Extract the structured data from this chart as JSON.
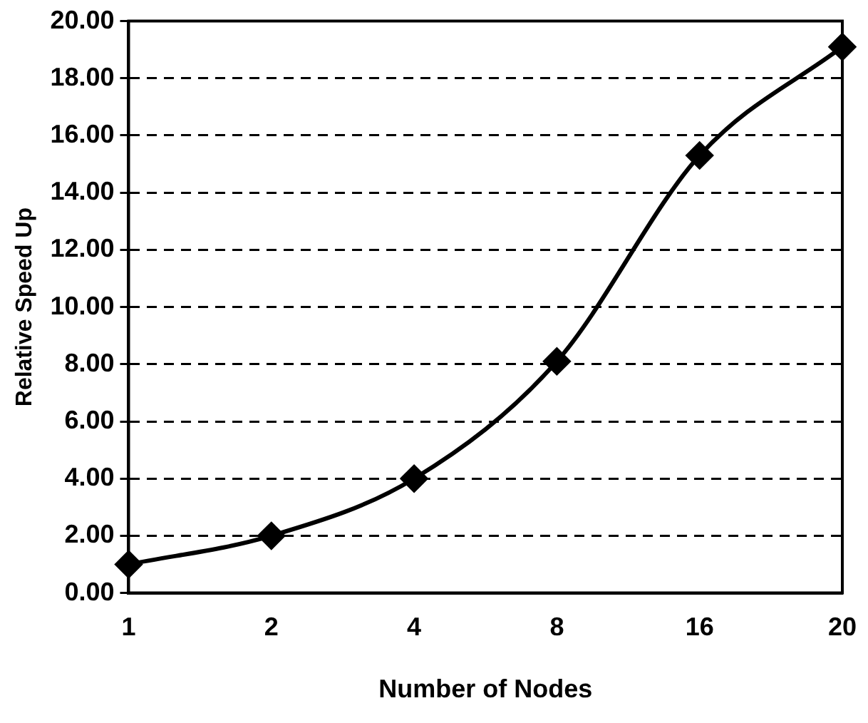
{
  "chart_data": {
    "type": "line",
    "xlabel": "Number of Nodes",
    "ylabel": "Relative Speed Up",
    "categories": [
      "1",
      "2",
      "4",
      "8",
      "16",
      "20"
    ],
    "series": [
      {
        "color": "#000000",
        "values": [
          1.0,
          2.0,
          4.0,
          8.1,
          15.3,
          19.1
        ]
      }
    ],
    "ylim": [
      0,
      20
    ],
    "yticks": [
      {
        "value": 0,
        "label": "0.00"
      },
      {
        "value": 2,
        "label": "2.00"
      },
      {
        "value": 4,
        "label": "4.00"
      },
      {
        "value": 6,
        "label": "6.00"
      },
      {
        "value": 8,
        "label": "8.00"
      },
      {
        "value": 10,
        "label": "10.00"
      },
      {
        "value": 12,
        "label": "12.00"
      },
      {
        "value": 14,
        "label": "14.00"
      },
      {
        "value": 16,
        "label": "16.00"
      },
      {
        "value": 18,
        "label": "18.00"
      },
      {
        "value": 20,
        "label": "20.00"
      }
    ],
    "grid": "y",
    "legend": false,
    "marker": "diamond",
    "line_style": "solid"
  }
}
